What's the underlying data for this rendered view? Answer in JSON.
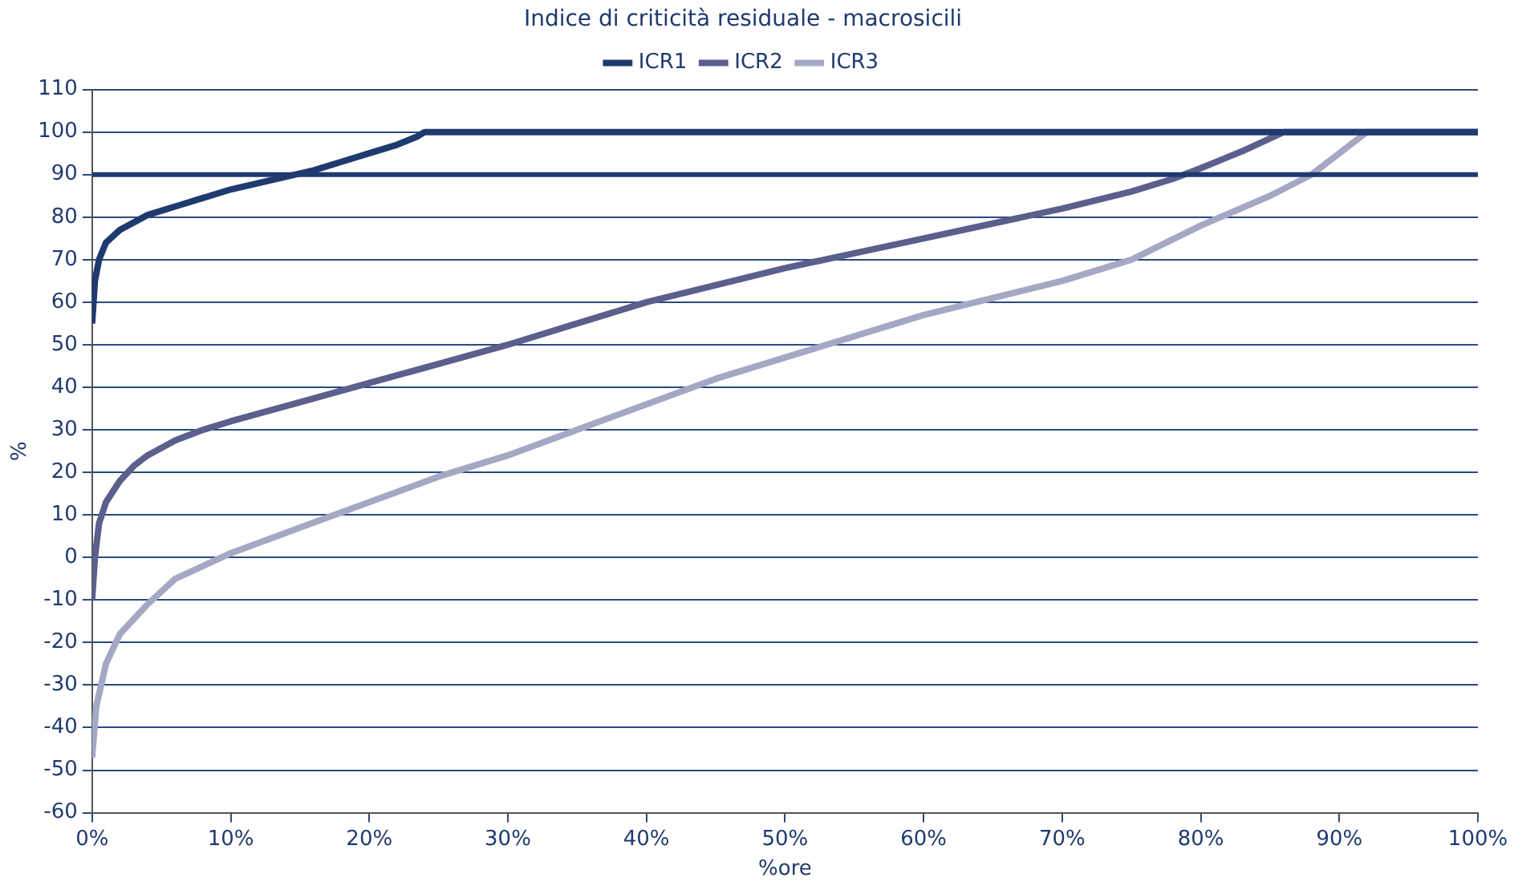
{
  "chart_data": {
    "type": "line",
    "title": "Indice di criticità residuale - macrosicili",
    "xlabel": "%ore",
    "ylabel": "%",
    "xlim": [
      0,
      100
    ],
    "xticks": [
      {
        "value": 0,
        "label": "0%"
      },
      {
        "value": 10,
        "label": "10%"
      },
      {
        "value": 20,
        "label": "20%"
      },
      {
        "value": 30,
        "label": "30%"
      },
      {
        "value": 40,
        "label": "40%"
      },
      {
        "value": 50,
        "label": "50%"
      },
      {
        "value": 60,
        "label": "60%"
      },
      {
        "value": 70,
        "label": "70%"
      },
      {
        "value": 80,
        "label": "80%"
      },
      {
        "value": 90,
        "label": "90%"
      },
      {
        "value": 100,
        "label": "100%"
      }
    ],
    "ylim": [
      -60,
      110
    ],
    "yticks": [
      -60,
      -50,
      -40,
      -30,
      -20,
      -10,
      0,
      10,
      20,
      30,
      40,
      50,
      60,
      70,
      80,
      90,
      100,
      110
    ],
    "grid": "y",
    "legend": "top",
    "marker": "none",
    "line_style": "solid",
    "ref_lines": [
      {
        "axis": "y",
        "value": 90,
        "color": "#1f3a6e"
      }
    ],
    "series": [
      {
        "name": "ICR1",
        "color": "#1f3a6e",
        "x": [
          0,
          0.2,
          0.5,
          1,
          2,
          4,
          6,
          8,
          10,
          12,
          14,
          16,
          18,
          20,
          22,
          23.5,
          24,
          100
        ],
        "values": [
          55,
          65,
          70,
          74,
          77,
          80.5,
          82.5,
          84.5,
          86.5,
          88,
          89.5,
          91,
          93,
          95,
          97,
          99,
          100,
          100
        ]
      },
      {
        "name": "ICR2",
        "color": "#5a5f8c",
        "x": [
          0,
          0.2,
          0.5,
          1,
          2,
          3,
          4,
          6,
          8,
          10,
          15,
          20,
          25,
          30,
          35,
          40,
          45,
          50,
          55,
          60,
          65,
          70,
          75,
          78,
          80,
          83,
          86,
          100
        ],
        "values": [
          -10,
          0,
          8,
          13,
          18,
          21.5,
          24,
          27.5,
          30,
          32,
          36.5,
          41,
          45.5,
          50,
          55,
          60,
          64,
          68,
          71.5,
          75,
          78.5,
          82,
          86,
          89,
          91.5,
          95.5,
          100,
          100
        ]
      },
      {
        "name": "ICR3",
        "color": "#a5a8c4",
        "x": [
          0,
          0.3,
          1,
          2,
          4,
          6,
          8,
          10,
          15,
          20,
          25,
          30,
          35,
          40,
          45,
          50,
          55,
          60,
          65,
          70,
          75,
          80,
          85,
          88,
          90,
          92,
          100
        ],
        "values": [
          -47,
          -35,
          -25,
          -18,
          -11,
          -5,
          -2,
          1,
          7,
          13,
          19,
          24,
          30,
          36,
          42,
          47,
          52,
          57,
          61,
          65,
          70,
          78,
          85,
          90,
          95,
          100,
          100
        ]
      }
    ]
  }
}
